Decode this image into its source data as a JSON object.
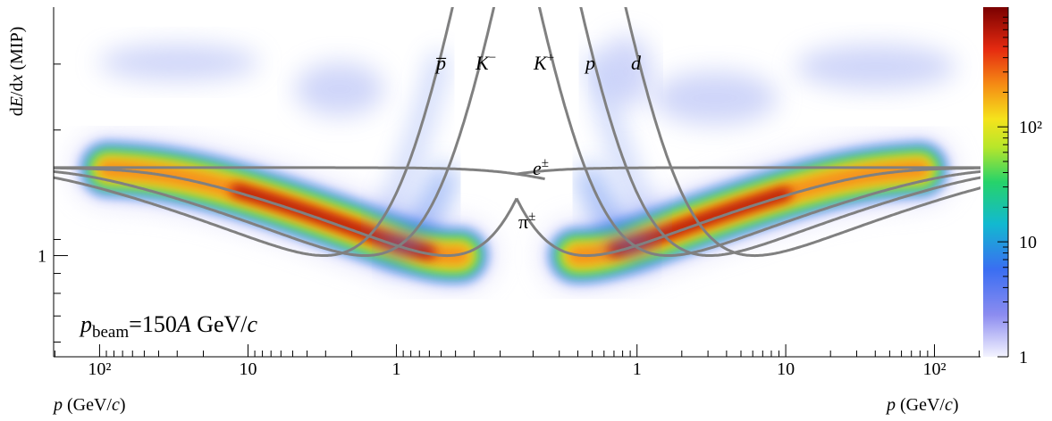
{
  "chart_data": {
    "type": "heatmap",
    "ylabel": [
      "d",
      "E",
      "/d",
      "x",
      " (MIP)"
    ],
    "xlabel_left": [
      "p",
      " (GeV/",
      "c",
      ")"
    ],
    "xlabel_right": [
      "p",
      " (GeV/",
      "c",
      ")"
    ],
    "annotation": [
      "p",
      "beam",
      "=150",
      "A",
      " GeV/",
      "c"
    ],
    "curve_labels": [
      {
        "base": "p̅",
        "sup": ""
      },
      {
        "base": "K",
        "sup": "−"
      },
      {
        "base": "K",
        "sup": "+"
      },
      {
        "base": "p",
        "sup": ""
      },
      {
        "base": "d",
        "sup": ""
      },
      {
        "base": "e",
        "sup": "±"
      },
      {
        "base": "π",
        "sup": "±"
      }
    ],
    "xlim": [
      0.155,
      204
    ],
    "xticks_left": [
      {
        "value": 100,
        "label": "10²"
      },
      10,
      1
    ],
    "xticks_right": [
      1,
      10,
      {
        "value": 100,
        "label": "10²"
      }
    ],
    "xlog": true,
    "ylim": [
      0.55,
      4.34
    ],
    "yticks": [
      1
    ],
    "ylog": true,
    "zlim": [
      1,
      1100
    ],
    "zticks": [
      1,
      10,
      {
        "value": 100,
        "label": "10²"
      }
    ],
    "zlog": true
  }
}
